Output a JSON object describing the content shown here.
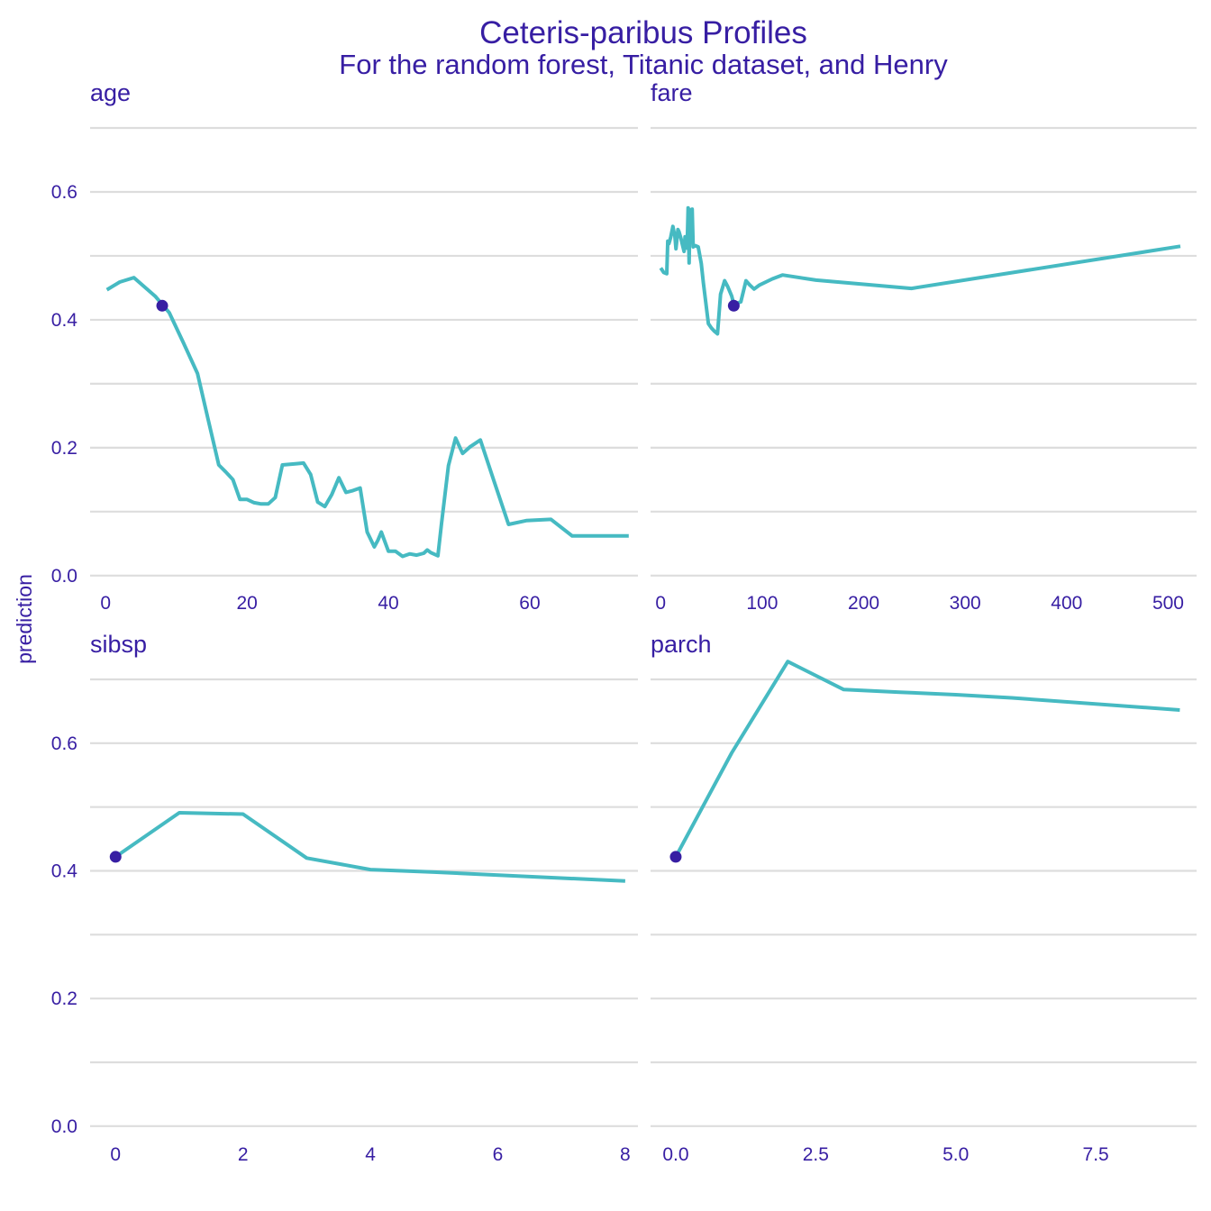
{
  "chart_data": {
    "type": "line",
    "title": "Ceteris-paribus Profiles",
    "subtitle": "For the random forest, Titanic dataset, and Henry",
    "ylabel": "prediction",
    "ylim": [
      -0.02,
      0.7
    ],
    "y_ticks": [
      0.0,
      0.2,
      0.4,
      0.6
    ],
    "y_tick_labels": [
      "0.0",
      "0.2",
      "0.4",
      "0.6"
    ],
    "grid": true,
    "colors": {
      "line": "#46BAC2",
      "point": "#371EA3",
      "text": "#371EA3",
      "grid": "#DDDDDD"
    },
    "panels": [
      {
        "variable": "age",
        "xlim": [
          -2.2,
          75.3
        ],
        "x_ticks": [
          0,
          20,
          40,
          60
        ],
        "x_tick_labels": [
          "0",
          "20",
          "40",
          "60"
        ],
        "x": [
          0.17,
          2,
          4,
          7,
          9,
          11,
          13,
          14.5,
          16,
          17,
          18,
          19,
          20,
          21,
          22,
          23,
          24,
          25,
          27,
          28,
          29,
          30,
          31,
          32,
          33,
          34,
          35,
          36,
          37,
          38,
          38.5,
          39,
          40,
          41,
          42,
          43,
          44,
          45,
          45.5,
          46,
          47,
          47.5,
          48.5,
          49.5,
          50.5,
          51.5,
          53,
          55,
          57,
          59.5,
          63,
          66,
          70,
          74
        ],
        "y": [
          0.447,
          0.459,
          0.466,
          0.437,
          0.411,
          0.364,
          0.316,
          0.244,
          0.173,
          0.162,
          0.15,
          0.119,
          0.119,
          0.114,
          0.112,
          0.112,
          0.122,
          0.173,
          0.175,
          0.176,
          0.158,
          0.115,
          0.108,
          0.127,
          0.153,
          0.13,
          0.133,
          0.137,
          0.068,
          0.045,
          0.055,
          0.068,
          0.038,
          0.038,
          0.03,
          0.034,
          0.032,
          0.035,
          0.04,
          0.036,
          0.031,
          0.08,
          0.172,
          0.215,
          0.191,
          0.201,
          0.212,
          0.146,
          0.08,
          0.086,
          0.088,
          0.062,
          0.062,
          0.062
        ],
        "observation": {
          "x": 8,
          "y": 0.422
        }
      },
      {
        "variable": "fare",
        "xlim": [
          -10,
          528
        ],
        "x_ticks": [
          0,
          100,
          200,
          300,
          400,
          500
        ],
        "x_tick_labels": [
          "0",
          "100",
          "200",
          "300",
          "400",
          "500"
        ],
        "x": [
          0,
          3,
          6,
          7,
          8,
          9,
          10,
          12,
          13,
          14,
          15,
          17,
          18,
          20,
          21,
          23,
          24,
          26,
          27,
          28,
          29,
          30,
          31,
          32,
          34,
          37,
          40,
          42,
          47,
          50,
          53,
          56,
          59,
          63,
          66,
          70,
          72,
          79,
          84,
          88,
          92,
          97,
          110,
          120,
          153,
          247,
          512
        ],
        "y": [
          0.481,
          0.474,
          0.472,
          0.523,
          0.519,
          0.524,
          0.53,
          0.546,
          0.538,
          0.531,
          0.511,
          0.541,
          0.538,
          0.527,
          0.52,
          0.507,
          0.53,
          0.512,
          0.575,
          0.489,
          0.572,
          0.54,
          0.573,
          0.514,
          0.516,
          0.514,
          0.488,
          0.458,
          0.394,
          0.387,
          0.382,
          0.378,
          0.44,
          0.461,
          0.452,
          0.437,
          0.424,
          0.428,
          0.461,
          0.454,
          0.448,
          0.454,
          0.464,
          0.47,
          0.462,
          0.449,
          0.515
        ],
        "observation": {
          "x": 72,
          "y": 0.422
        }
      },
      {
        "variable": "sibsp",
        "xlim": [
          -0.4,
          8.2
        ],
        "x_ticks": [
          0,
          2,
          4,
          6,
          8
        ],
        "x_tick_labels": [
          "0",
          "2",
          "4",
          "6",
          "8"
        ],
        "x": [
          0,
          1,
          2,
          3,
          4,
          5,
          8
        ],
        "y": [
          0.422,
          0.491,
          0.489,
          0.42,
          0.402,
          0.398,
          0.384
        ],
        "observation": {
          "x": 0,
          "y": 0.422
        }
      },
      {
        "variable": "parch",
        "xlim": [
          -0.45,
          9.3
        ],
        "x_ticks": [
          0,
          2.5,
          5,
          7.5
        ],
        "x_tick_labels": [
          "0.0",
          "2.5",
          "5.0",
          "7.5"
        ],
        "x": [
          0,
          1,
          2,
          3,
          4,
          5,
          6,
          9
        ],
        "y": [
          0.422,
          0.585,
          0.728,
          0.684,
          0.68,
          0.676,
          0.671,
          0.652
        ],
        "observation": {
          "x": 0,
          "y": 0.422
        }
      }
    ]
  }
}
